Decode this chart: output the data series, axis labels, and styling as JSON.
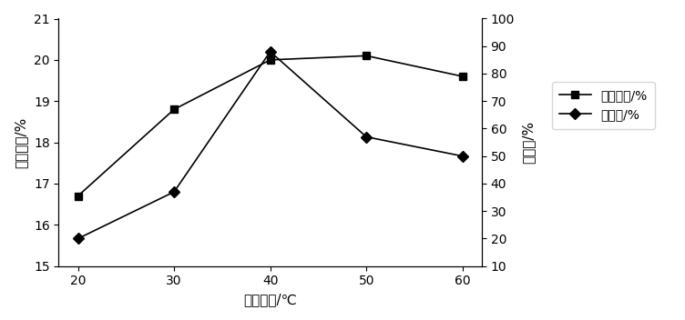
{
  "x": [
    20,
    30,
    40,
    50,
    60
  ],
  "extraction_rate": [
    16.7,
    18.8,
    20.0,
    20.1,
    19.6
  ],
  "clearance_rate": [
    20,
    37,
    88,
    57,
    50
  ],
  "left_ylim": [
    15,
    21
  ],
  "left_yticks": [
    15,
    16,
    17,
    18,
    19,
    20,
    21
  ],
  "right_ylim": [
    10,
    100
  ],
  "right_yticks": [
    10,
    20,
    30,
    40,
    50,
    60,
    70,
    80,
    90,
    100
  ],
  "xlabel": "提取温度/℃",
  "left_ylabel": "提取得率/%",
  "right_ylabel": "清除率/%",
  "legend_label1": "提取得率/%",
  "legend_label2": "清除率/%",
  "line_color": "#000000",
  "marker_square": "s",
  "marker_diamond": "D",
  "marker_size": 6,
  "marker_size_diamond": 6
}
